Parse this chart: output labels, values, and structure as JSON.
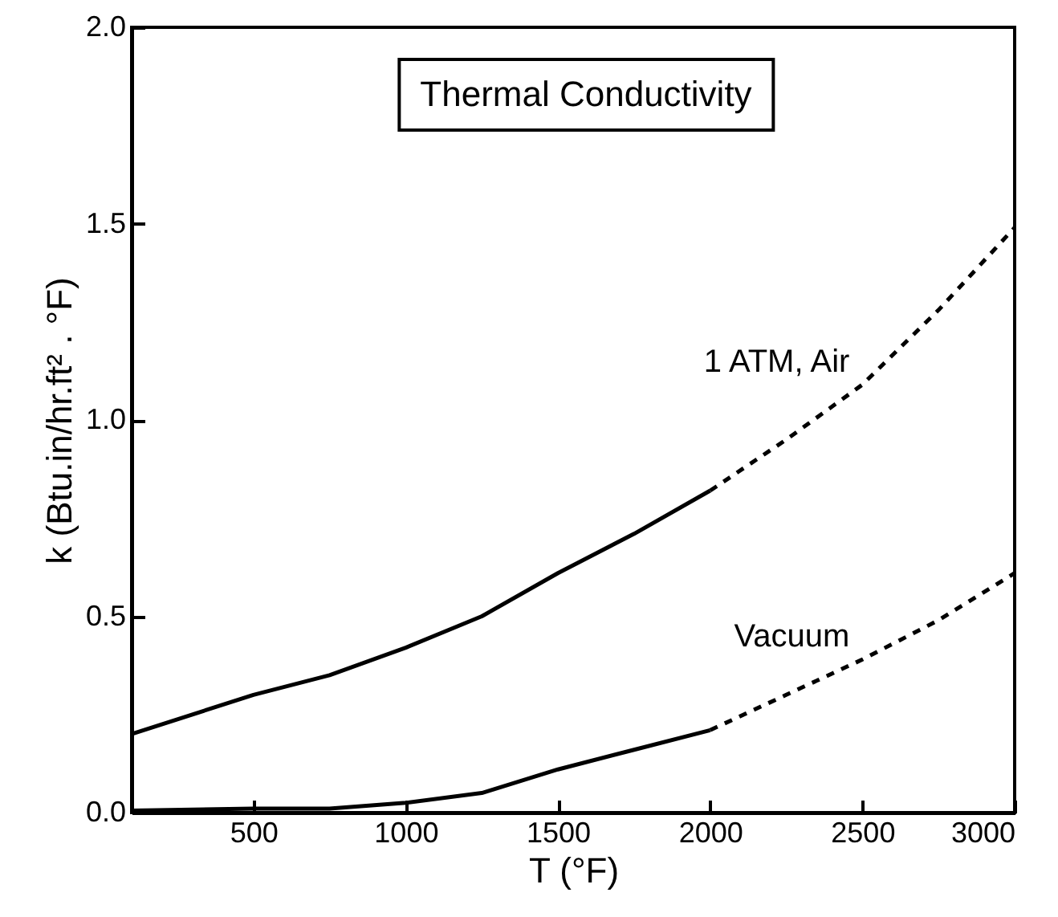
{
  "chart_data": {
    "type": "line",
    "title": "Thermal Conductivity",
    "xlabel": "T (°F)",
    "ylabel": "k (Btu.in/hr.ft² . °F)",
    "xlim": [
      100,
      3000
    ],
    "xticks": [
      500,
      1000,
      1500,
      2000,
      2500,
      3000
    ],
    "ylim": [
      0,
      2
    ],
    "yticks": [
      {
        "value": 0,
        "label": "0.0"
      },
      {
        "value": 0.5,
        "label": "0.5"
      },
      {
        "value": 1,
        "label": "1.0"
      },
      {
        "value": 1.5,
        "label": "1.5"
      },
      {
        "value": 2,
        "label": "2.0"
      }
    ],
    "grid": false,
    "series": [
      {
        "color": "#000000",
        "line_style": "solid",
        "x": [
          100,
          500,
          750,
          1000,
          1250,
          1500,
          1750,
          2000
        ],
        "values": [
          0.2,
          0.3,
          0.35,
          0.42,
          0.5,
          0.61,
          0.71,
          0.82
        ]
      },
      {
        "color": "#000000",
        "line_style": "dashed",
        "x": [
          2000,
          2250,
          2500,
          2750,
          3000
        ],
        "values": [
          0.82,
          0.95,
          1.09,
          1.28,
          1.49
        ]
      },
      {
        "color": "#000000",
        "line_style": "solid",
        "x": [
          100,
          500,
          750,
          1000,
          1250,
          1500,
          1750,
          2000
        ],
        "values": [
          0.005,
          0.01,
          0.01,
          0.025,
          0.05,
          0.11,
          0.16,
          0.21
        ]
      },
      {
        "color": "#000000",
        "line_style": "dashed",
        "x": [
          2000,
          2250,
          2500,
          2750,
          3000
        ],
        "values": [
          0.21,
          0.3,
          0.39,
          0.49,
          0.61
        ]
      }
    ],
    "annotations": [
      {
        "text": "1 ATM, Air",
        "x": 2500,
        "y": 1.09
      },
      {
        "text": "Vacuum",
        "x": 2500,
        "y": 0.39
      }
    ]
  }
}
